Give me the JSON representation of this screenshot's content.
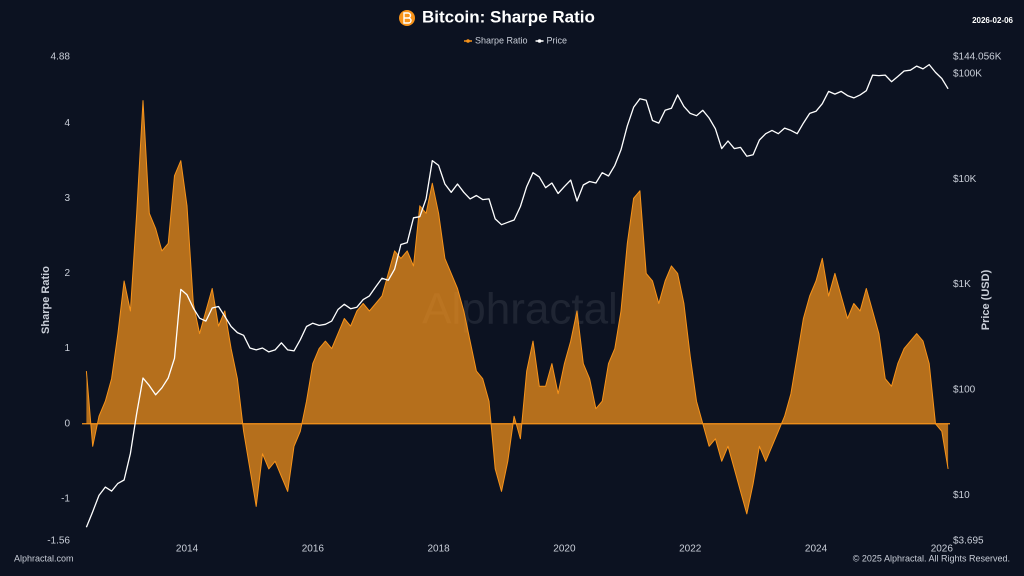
{
  "chart_data": {
    "type": "line",
    "title": "Bitcoin: Sharpe Ratio",
    "date": "2026-02-06",
    "watermark": "Alphractal",
    "source": "Alphractal.com",
    "copyright": "© 2025 Alphractal. All Rights Reserved.",
    "ylabel": "Sharpe Ratio",
    "y2label": "Price (USD)",
    "xlim": [
      2012.33,
      2026.13
    ],
    "xticks": [
      2014,
      2016,
      2018,
      2020,
      2022,
      2024,
      2026
    ],
    "ylim": [
      -1.56,
      4.88
    ],
    "yticks": [
      -1.56,
      -1,
      0,
      1,
      2,
      3,
      4,
      4.88
    ],
    "y2lim": [
      3.695,
      144056
    ],
    "y2ticks": [
      {
        "value": 3.695,
        "label": "$3.695"
      },
      {
        "value": 10,
        "label": "$10"
      },
      {
        "value": 100,
        "label": "$100"
      },
      {
        "value": 1000,
        "label": "$1K"
      },
      {
        "value": 10000,
        "label": "$10K"
      },
      {
        "value": 100000,
        "label": "$100K"
      },
      {
        "value": 144056,
        "label": "$144.056K"
      }
    ],
    "y2log": true,
    "grid": false,
    "legend": "top",
    "x": [
      2012.4,
      2012.5,
      2012.6,
      2012.7,
      2012.8,
      2012.9,
      2013.0,
      2013.1,
      2013.2,
      2013.3,
      2013.4,
      2013.5,
      2013.6,
      2013.7,
      2013.8,
      2013.9,
      2014.0,
      2014.1,
      2014.2,
      2014.3,
      2014.4,
      2014.5,
      2014.6,
      2014.7,
      2014.8,
      2014.9,
      2015.0,
      2015.1,
      2015.2,
      2015.3,
      2015.4,
      2015.5,
      2015.6,
      2015.7,
      2015.8,
      2015.9,
      2016.0,
      2016.1,
      2016.2,
      2016.3,
      2016.4,
      2016.5,
      2016.6,
      2016.7,
      2016.8,
      2016.9,
      2017.0,
      2017.1,
      2017.2,
      2017.3,
      2017.4,
      2017.5,
      2017.6,
      2017.7,
      2017.8,
      2017.9,
      2018.0,
      2018.1,
      2018.2,
      2018.3,
      2018.4,
      2018.5,
      2018.6,
      2018.7,
      2018.8,
      2018.9,
      2019.0,
      2019.1,
      2019.2,
      2019.3,
      2019.4,
      2019.5,
      2019.6,
      2019.7,
      2019.8,
      2019.9,
      2020.0,
      2020.1,
      2020.2,
      2020.3,
      2020.4,
      2020.5,
      2020.6,
      2020.7,
      2020.8,
      2020.9,
      2021.0,
      2021.1,
      2021.2,
      2021.3,
      2021.4,
      2021.5,
      2021.6,
      2021.7,
      2021.8,
      2021.9,
      2022.0,
      2022.1,
      2022.2,
      2022.3,
      2022.4,
      2022.5,
      2022.6,
      2022.7,
      2022.8,
      2022.9,
      2023.0,
      2023.1,
      2023.2,
      2023.3,
      2023.4,
      2023.5,
      2023.6,
      2023.7,
      2023.8,
      2023.9,
      2024.0,
      2024.1,
      2024.2,
      2024.3,
      2024.4,
      2024.5,
      2024.6,
      2024.7,
      2024.8,
      2024.9,
      2025.0,
      2025.1,
      2025.2,
      2025.3,
      2025.4,
      2025.5,
      2025.6,
      2025.7,
      2025.8,
      2025.9,
      2026.0,
      2026.1
    ],
    "series": [
      {
        "name": "Sharpe Ratio",
        "color": "#f7931a",
        "area": true,
        "values": [
          0.7,
          -0.3,
          0.1,
          0.3,
          0.6,
          1.2,
          1.9,
          1.5,
          2.8,
          4.3,
          2.8,
          2.6,
          2.3,
          2.4,
          3.3,
          3.5,
          2.9,
          1.6,
          1.2,
          1.5,
          1.8,
          1.3,
          1.5,
          1.0,
          0.6,
          -0.1,
          -0.6,
          -1.1,
          -0.4,
          -0.6,
          -0.5,
          -0.7,
          -0.9,
          -0.3,
          -0.1,
          0.3,
          0.8,
          1.0,
          1.1,
          1.0,
          1.2,
          1.4,
          1.3,
          1.5,
          1.6,
          1.5,
          1.6,
          1.7,
          2.0,
          2.3,
          2.2,
          2.3,
          2.1,
          2.9,
          2.8,
          3.2,
          2.8,
          2.2,
          2.0,
          1.8,
          1.5,
          1.1,
          0.7,
          0.6,
          0.3,
          -0.6,
          -0.9,
          -0.5,
          0.1,
          -0.2,
          0.7,
          1.1,
          0.5,
          0.5,
          0.8,
          0.4,
          0.8,
          1.1,
          1.5,
          0.8,
          0.6,
          0.2,
          0.3,
          0.8,
          1.0,
          1.5,
          2.4,
          3.0,
          3.1,
          2.0,
          1.9,
          1.6,
          1.9,
          2.1,
          2.0,
          1.6,
          0.9,
          0.3,
          0.0,
          -0.3,
          -0.2,
          -0.5,
          -0.3,
          -0.6,
          -0.9,
          -1.2,
          -0.8,
          -0.3,
          -0.5,
          -0.3,
          -0.1,
          0.1,
          0.4,
          0.9,
          1.4,
          1.7,
          1.9,
          2.2,
          1.7,
          2.0,
          1.7,
          1.4,
          1.6,
          1.5,
          1.8,
          1.5,
          1.2,
          0.6,
          0.5,
          0.8,
          1.0,
          1.1,
          1.2,
          1.1,
          0.8,
          0.0,
          -0.1,
          -0.6
        ]
      },
      {
        "name": "Price",
        "color": "#ffffff",
        "axis": "y2",
        "values": [
          5,
          7,
          10,
          12,
          11,
          13,
          14,
          25,
          60,
          130,
          110,
          90,
          105,
          130,
          200,
          900,
          800,
          600,
          480,
          450,
          600,
          620,
          500,
          400,
          350,
          330,
          250,
          240,
          250,
          230,
          240,
          280,
          240,
          235,
          300,
          400,
          430,
          410,
          420,
          450,
          580,
          650,
          590,
          610,
          720,
          780,
          950,
          1150,
          1100,
          1400,
          2400,
          2500,
          4300,
          4400,
          6500,
          15000,
          13500,
          9000,
          7500,
          9000,
          7500,
          6500,
          7000,
          6400,
          6500,
          4200,
          3700,
          3900,
          4100,
          5500,
          8500,
          11500,
          10500,
          8300,
          9200,
          7300,
          8500,
          9800,
          6200,
          8800,
          9500,
          9200,
          11500,
          10700,
          13500,
          19000,
          32000,
          48000,
          58000,
          56000,
          36000,
          34000,
          45000,
          47000,
          63000,
          49000,
          42000,
          40000,
          45000,
          38000,
          30000,
          19500,
          23000,
          19500,
          20000,
          16500,
          17000,
          23500,
          27000,
          29000,
          27000,
          30500,
          29000,
          27000,
          34000,
          42000,
          44000,
          52000,
          68000,
          64000,
          68000,
          62000,
          59000,
          63000,
          69000,
          97000,
          96000,
          97000,
          84000,
          94000,
          106000,
          108000,
          118000,
          111000,
          122000,
          103000,
          90000,
          72000
        ]
      }
    ]
  }
}
